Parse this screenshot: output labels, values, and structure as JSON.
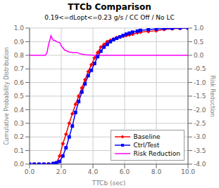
{
  "chart_data": {
    "type": "line",
    "title": "TTCb Comparison",
    "subtitle": "0.19<=dLopt<=0.23 g/s / CC Off / No LC",
    "xlabel": "TTCb (sec)",
    "ylabel": "Cumulative Probability Distribution",
    "y2label": "Risk Reduction",
    "xlim": [
      0.0,
      10.0
    ],
    "xticks": [
      {
        "value": 0,
        "label": "0.0"
      },
      {
        "value": 2,
        "label": "2.0"
      },
      {
        "value": 4,
        "label": "4.0"
      },
      {
        "value": 6,
        "label": "6.0"
      },
      {
        "value": 8,
        "label": "8.0"
      },
      {
        "value": 10,
        "label": "10.0"
      }
    ],
    "ylim": [
      0.0,
      1.0
    ],
    "yticks": [
      {
        "value": 0,
        "label": "0.0"
      },
      0.1,
      0.2,
      0.3,
      0.4,
      0.5,
      0.6,
      0.7,
      0.8,
      0.9,
      {
        "value": 1,
        "label": "1.0"
      }
    ],
    "y2lim": [
      -4.0,
      1.0
    ],
    "y2ticks": [
      {
        "value": -4,
        "label": "-4.0"
      },
      -3.5,
      {
        "value": -3,
        "label": "-3.0"
      },
      -2.5,
      {
        "value": -2,
        "label": "-2.0"
      },
      -1.5,
      {
        "value": -1,
        "label": "-1.0"
      },
      -0.5,
      {
        "value": 0,
        "label": "0.0"
      },
      0.5,
      {
        "value": 1,
        "label": "1.0"
      }
    ],
    "grid": true,
    "legend": "lower right",
    "series": [
      {
        "name": "Baseline",
        "color": "#ff0000",
        "marker": "diamond",
        "x": [
          0.0,
          0.3,
          0.6,
          0.9,
          1.2,
          1.5,
          1.7,
          1.9,
          2.1,
          2.3,
          2.5,
          2.7,
          2.9,
          3.1,
          3.3,
          3.5,
          3.7,
          3.9,
          4.1,
          4.3,
          4.5,
          4.7,
          4.9,
          5.1,
          5.3,
          5.5,
          5.7,
          5.9,
          6.1,
          6.3,
          6.5,
          6.8,
          7.0,
          7.5,
          8.0,
          8.5,
          9.0,
          9.5,
          10.0
        ],
        "values": [
          0.0,
          0.0,
          0.0,
          0.0,
          0.0,
          0.005,
          0.01,
          0.06,
          0.15,
          0.22,
          0.3,
          0.37,
          0.44,
          0.5,
          0.56,
          0.62,
          0.68,
          0.73,
          0.78,
          0.82,
          0.86,
          0.88,
          0.9,
          0.91,
          0.92,
          0.93,
          0.935,
          0.94,
          0.945,
          0.95,
          0.955,
          0.965,
          0.97,
          0.975,
          0.98,
          0.99,
          0.995,
          0.998,
          1.0
        ]
      },
      {
        "name": "Ctrl/Test",
        "color": "#0000ff",
        "marker": "square",
        "x": [
          0.0,
          0.3,
          0.6,
          0.9,
          1.2,
          1.5,
          1.7,
          1.9,
          2.1,
          2.3,
          2.5,
          2.7,
          2.9,
          3.1,
          3.3,
          3.5,
          3.7,
          3.9,
          4.1,
          4.3,
          4.5,
          4.7,
          4.9,
          5.1,
          5.3,
          5.5,
          5.7,
          5.9,
          6.1,
          6.3,
          6.5,
          6.8,
          7.0,
          7.5,
          8.0,
          8.5,
          9.0,
          9.5,
          10.0
        ],
        "values": [
          0.0,
          0.0,
          0.0,
          0.0,
          0.0,
          0.005,
          0.01,
          0.02,
          0.06,
          0.12,
          0.2,
          0.28,
          0.38,
          0.46,
          0.53,
          0.59,
          0.65,
          0.69,
          0.74,
          0.79,
          0.83,
          0.86,
          0.88,
          0.9,
          0.915,
          0.925,
          0.935,
          0.945,
          0.955,
          0.963,
          0.97,
          0.978,
          0.983,
          0.989,
          0.993,
          0.996,
          0.998,
          1.0,
          1.0
        ]
      },
      {
        "name": "Risk Reduction",
        "color": "#ff00ff",
        "axis": "y2",
        "x": [
          0.0,
          0.5,
          1.0,
          1.1,
          1.2,
          1.3,
          1.35,
          1.4,
          1.5,
          1.6,
          1.7,
          1.8,
          1.9,
          2.0,
          2.2,
          2.5,
          2.8,
          3.0,
          3.2,
          3.5,
          4.0,
          4.5,
          5.0,
          5.5,
          6.0,
          6.5,
          7.0,
          7.5,
          8.0,
          8.5,
          9.0,
          9.5,
          10.0
        ],
        "values": [
          0.0,
          0.0,
          0.0,
          0.1,
          0.4,
          0.6,
          0.72,
          0.65,
          0.55,
          0.55,
          0.5,
          0.48,
          0.47,
          0.35,
          0.2,
          0.12,
          0.1,
          0.1,
          0.05,
          0.02,
          0.0,
          0.0,
          0.0,
          0.0,
          0.0,
          0.0,
          0.0,
          0.0,
          0.0,
          0.0,
          0.0,
          0.0,
          0.0
        ]
      }
    ]
  }
}
